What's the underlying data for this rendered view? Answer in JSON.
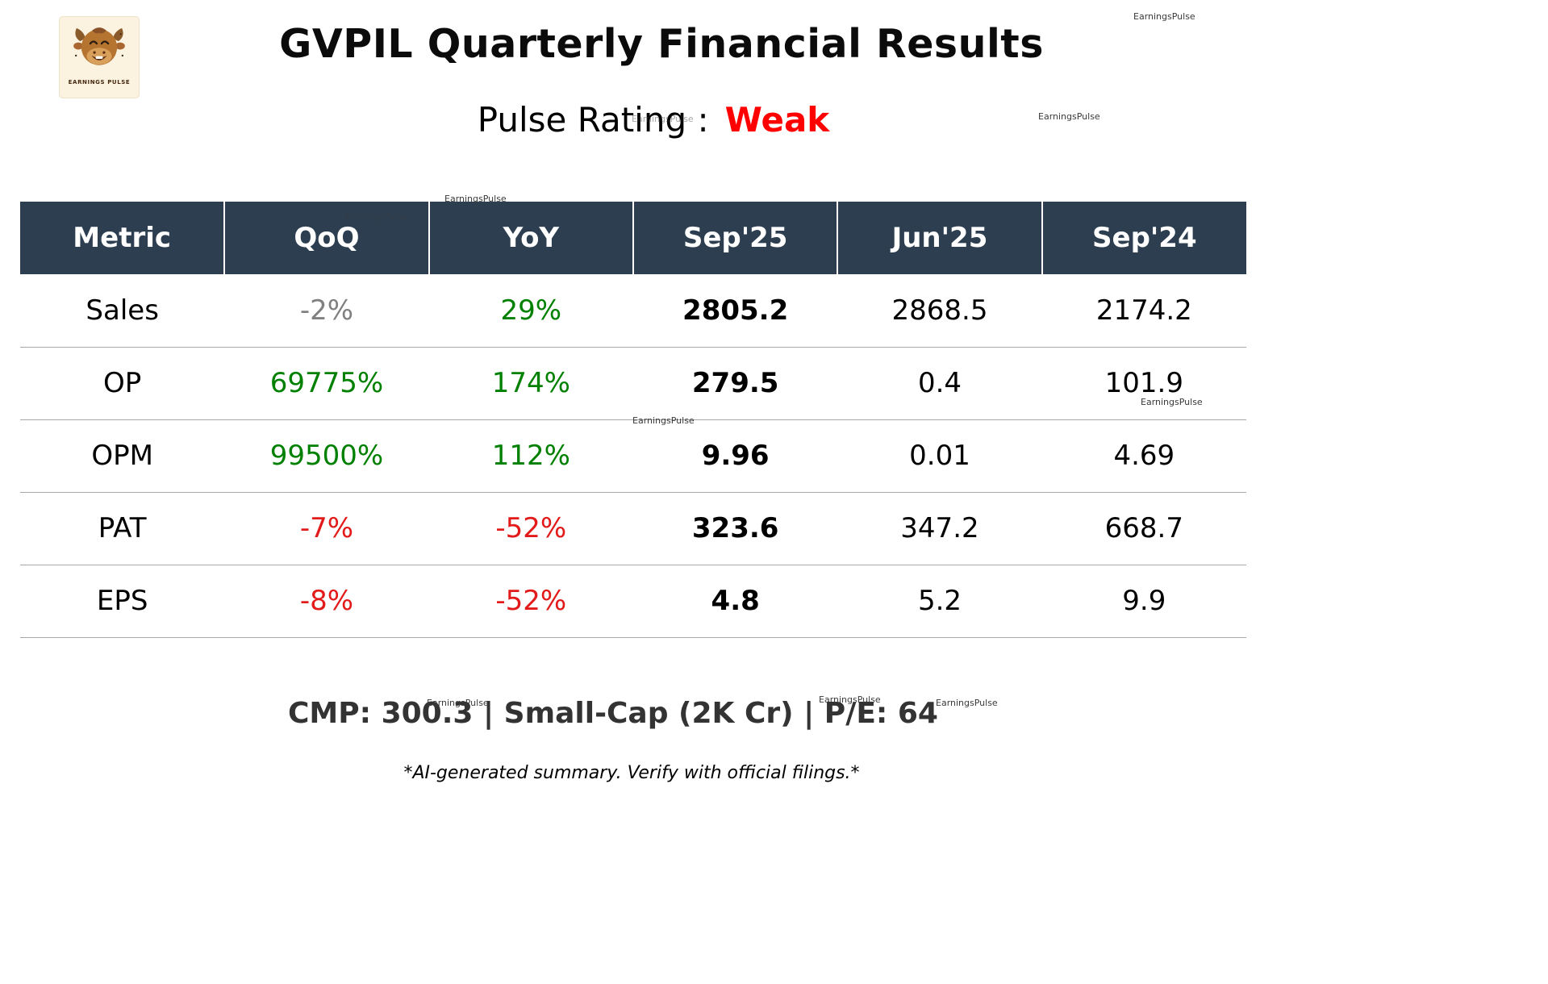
{
  "watermark": "EarningsPulse",
  "logo": {
    "brand": "EARNINGS PULSE"
  },
  "header": {
    "title": "GVPIL Quarterly Financial Results",
    "rating_label": "Pulse Rating :",
    "rating_value": "Weak"
  },
  "colors": {
    "header_bg": "#2c3e50",
    "green": "#008000",
    "red": "#e31a1a",
    "gray": "#808080",
    "rating_red": "#ff0000",
    "footer_text": "#333333"
  },
  "table": {
    "columns": [
      "Metric",
      "QoQ",
      "YoY",
      "Sep'25",
      "Jun'25",
      "Sep'24"
    ],
    "rows": [
      {
        "cells": [
          {
            "text": "Sales"
          },
          {
            "text": "-2%",
            "color": "gray"
          },
          {
            "text": "29%",
            "color": "green"
          },
          {
            "text": "2805.2",
            "bold": true
          },
          {
            "text": "2868.5"
          },
          {
            "text": "2174.2"
          }
        ]
      },
      {
        "cells": [
          {
            "text": "OP"
          },
          {
            "text": "69775%",
            "color": "green"
          },
          {
            "text": "174%",
            "color": "green"
          },
          {
            "text": "279.5",
            "bold": true
          },
          {
            "text": "0.4"
          },
          {
            "text": "101.9"
          }
        ]
      },
      {
        "cells": [
          {
            "text": "OPM"
          },
          {
            "text": "99500%",
            "color": "green"
          },
          {
            "text": "112%",
            "color": "green"
          },
          {
            "text": "9.96",
            "bold": true
          },
          {
            "text": "0.01"
          },
          {
            "text": "4.69"
          }
        ]
      },
      {
        "cells": [
          {
            "text": "PAT"
          },
          {
            "text": "-7%",
            "color": "red"
          },
          {
            "text": "-52%",
            "color": "red"
          },
          {
            "text": "323.6",
            "bold": true
          },
          {
            "text": "347.2"
          },
          {
            "text": "668.7"
          }
        ]
      },
      {
        "cells": [
          {
            "text": "EPS"
          },
          {
            "text": "-8%",
            "color": "red"
          },
          {
            "text": "-52%",
            "color": "red"
          },
          {
            "text": "4.8",
            "bold": true
          },
          {
            "text": "5.2"
          },
          {
            "text": "9.9"
          }
        ]
      }
    ]
  },
  "footer": {
    "summary": "CMP: 300.3 | Small-Cap (2K Cr) | P/E: 64",
    "disclaimer": "*AI-generated summary. Verify with official filings.*"
  },
  "chart_data": {
    "type": "table",
    "title": "GVPIL Quarterly Financial Results",
    "subtitle": "Pulse Rating : Weak",
    "columns": [
      "Metric",
      "QoQ",
      "YoY",
      "Sep'25",
      "Jun'25",
      "Sep'24"
    ],
    "rows": [
      [
        "Sales",
        "-2%",
        "29%",
        "2805.2",
        "2868.5",
        "2174.2"
      ],
      [
        "OP",
        "69775%",
        "174%",
        "279.5",
        "0.4",
        "101.9"
      ],
      [
        "OPM",
        "99500%",
        "112%",
        "9.96",
        "0.01",
        "4.69"
      ],
      [
        "PAT",
        "-7%",
        "-52%",
        "323.6",
        "347.2",
        "668.7"
      ],
      [
        "EPS",
        "-8%",
        "-52%",
        "4.8",
        "5.2",
        "9.9"
      ]
    ],
    "footer": "CMP: 300.3 | Small-Cap (2K Cr) | P/E: 64"
  }
}
